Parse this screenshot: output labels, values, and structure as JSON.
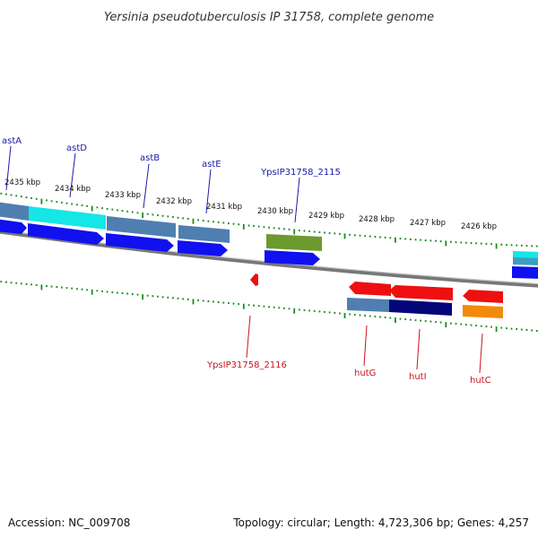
{
  "title": "Yersinia pseudotuberculosis IP 31758, complete genome",
  "footer": {
    "accession": "Accession: NC_009708",
    "summary": "Topology: circular; Length: 4,723,306 bp; Genes: 4,257"
  },
  "colors": {
    "backbone": "#8a8a8a",
    "tick": "#1e8c1e",
    "cds_blue": "#1010f0",
    "cds_red": "#ee1010",
    "steel": "#4f7fb0",
    "cyan": "#15e6e6",
    "navy": "#05057a",
    "olive": "#6c9a2e",
    "orange": "#f28a0c",
    "label_fwd": "#1a1aa8",
    "label_rev": "#c8141e"
  },
  "ticks": [
    "2435 kbp",
    "2434 kbp",
    "2433 kbp",
    "2432 kbp",
    "2431 kbp",
    "2430 kbp",
    "2429 kbp",
    "2428 kbp",
    "2427 kbp",
    "2426 kbp"
  ],
  "gene_labels": {
    "forward": [
      "astA",
      "astD",
      "astB",
      "astE",
      "YpsIP31758_2115"
    ],
    "reverse": [
      "YpsIP31758_2116",
      "hutG",
      "hutI",
      "hutC"
    ]
  }
}
